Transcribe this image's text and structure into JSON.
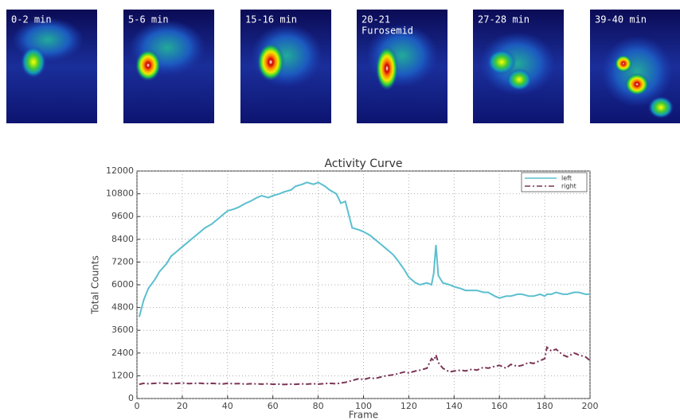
{
  "panels": [
    {
      "label": [
        "0-2 min"
      ]
    },
    {
      "label": [
        "5-6 min"
      ]
    },
    {
      "label": [
        "15-16 min"
      ]
    },
    {
      "label": [
        "20-21",
        "Furosemid"
      ]
    },
    {
      "label": [
        "27-28 min"
      ]
    },
    {
      "label": [
        "39-40 min"
      ]
    }
  ],
  "chart_data": {
    "type": "line",
    "title": "Activity Curve",
    "x_label": "Frame",
    "y_label": "Total Counts",
    "x": [
      1,
      3,
      5,
      8,
      10,
      13,
      15,
      18,
      20,
      23,
      25,
      28,
      30,
      33,
      35,
      38,
      40,
      43,
      45,
      48,
      50,
      53,
      55,
      58,
      60,
      63,
      65,
      68,
      70,
      73,
      75,
      78,
      80,
      83,
      85,
      88,
      90,
      92,
      95,
      98,
      100,
      103,
      105,
      108,
      110,
      113,
      115,
      118,
      120,
      123,
      125,
      128,
      130,
      131,
      132,
      133,
      135,
      138,
      140,
      143,
      145,
      148,
      150,
      153,
      155,
      158,
      160,
      163,
      165,
      168,
      170,
      173,
      175,
      178,
      180,
      181,
      183,
      185,
      188,
      190,
      193,
      195,
      198,
      200
    ],
    "series": [
      {
        "name": "left",
        "color": "#5bbfcf",
        "dash": "solid",
        "values": [
          4300,
          5200,
          5800,
          6300,
          6700,
          7100,
          7500,
          7800,
          8000,
          8300,
          8500,
          8800,
          9000,
          9200,
          9400,
          9700,
          9900,
          10000,
          10100,
          10300,
          10400,
          10600,
          10700,
          10600,
          10700,
          10800,
          10900,
          11000,
          11200,
          11300,
          11400,
          11300,
          11400,
          11200,
          11000,
          10800,
          10300,
          10400,
          9000,
          8900,
          8800,
          8600,
          8400,
          8100,
          7900,
          7600,
          7300,
          6800,
          6400,
          6100,
          6000,
          6100,
          6000,
          6600,
          8100,
          6500,
          6100,
          6000,
          5900,
          5800,
          5700,
          5700,
          5700,
          5600,
          5600,
          5400,
          5300,
          5400,
          5400,
          5500,
          5500,
          5400,
          5400,
          5500,
          5400,
          5500,
          5500,
          5600,
          5500,
          5500,
          5600,
          5600,
          5500,
          5500
        ]
      },
      {
        "name": "right",
        "color": "#7a3556",
        "dash": "dashdot",
        "values": [
          750,
          800,
          780,
          800,
          820,
          800,
          780,
          800,
          820,
          790,
          800,
          810,
          780,
          800,
          790,
          770,
          800,
          780,
          790,
          760,
          780,
          770,
          760,
          780,
          750,
          760,
          740,
          760,
          750,
          770,
          760,
          780,
          760,
          790,
          800,
          780,
          820,
          850,
          950,
          1050,
          1000,
          1100,
          1050,
          1150,
          1200,
          1250,
          1300,
          1400,
          1350,
          1450,
          1500,
          1600,
          2100,
          2000,
          2300,
          1900,
          1600,
          1400,
          1450,
          1500,
          1450,
          1550,
          1500,
          1650,
          1600,
          1700,
          1750,
          1600,
          1800,
          1700,
          1750,
          1900,
          1850,
          2000,
          2100,
          2700,
          2500,
          2600,
          2300,
          2200,
          2400,
          2300,
          2200,
          2000
        ]
      }
    ],
    "xlim": [
      0,
      200
    ],
    "xticks": [
      0,
      20,
      40,
      60,
      80,
      100,
      120,
      140,
      160,
      180,
      200
    ],
    "ylim": [
      0,
      12000
    ],
    "yticks": [
      0,
      1200,
      2400,
      3600,
      4800,
      6000,
      7200,
      8400,
      9600,
      10800,
      12000
    ],
    "grid": true,
    "legend": "upper right"
  }
}
